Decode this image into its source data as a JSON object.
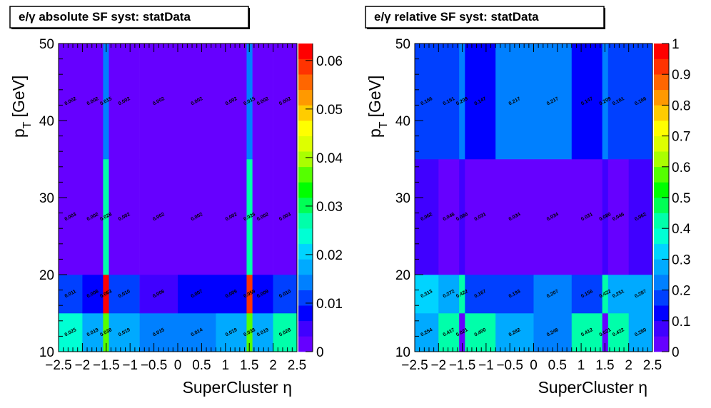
{
  "chart_data": [
    {
      "type": "heatmap",
      "title": "e/γ absolute SF syst: statData",
      "xlabel": "SuperCluster  η",
      "ylabel_main": "p",
      "ylabel_sub": "T",
      "ylabel_unit": "[GeV]",
      "x_edges": [
        -2.5,
        -2.0,
        -1.566,
        -1.444,
        -0.8,
        0.0,
        0.8,
        1.444,
        1.566,
        2.0,
        2.5
      ],
      "y_edges": [
        10,
        15,
        20,
        35,
        50
      ],
      "xlim": [
        -2.5,
        2.5
      ],
      "ylim": [
        10,
        50
      ],
      "zlim": [
        0,
        0.0635
      ],
      "x_ticks": [
        "−2.5",
        "−2",
        "−1.5",
        "−1",
        "−0.5",
        "0",
        "0.5",
        "1",
        "1.5",
        "2",
        "2.5"
      ],
      "y_ticks": [
        "10",
        "20",
        "30",
        "40",
        "50"
      ],
      "z_ticks": [
        "0",
        "0.01",
        "0.02",
        "0.03",
        "0.04",
        "0.05",
        "0.06"
      ],
      "values": [
        [
          0.025,
          0.019,
          0.038,
          0.019,
          0.015,
          0.014,
          0.019,
          0.038,
          0.019,
          0.028
        ],
        [
          0.011,
          0.008,
          0.063,
          0.01,
          0.006,
          0.007,
          0.009,
          0.059,
          0.009,
          0.01
        ],
        [
          0.003,
          0.002,
          0.028,
          0.002,
          0.002,
          0.002,
          0.002,
          0.026,
          0.002,
          0.003
        ],
        [
          0.002,
          0.002,
          0.015,
          0.002,
          0.002,
          0.002,
          0.002,
          0.015,
          0.002,
          0.002
        ]
      ],
      "labels": [
        [
          "0.025",
          "0.019",
          "0.038",
          "0.019",
          "0.015",
          "0.014",
          "0.019",
          "0.038",
          "0.019",
          "0.028"
        ],
        [
          "0.011",
          "0.008",
          "0.063",
          "0.010",
          "0.006",
          "0.007",
          "0.009",
          "0.059",
          "0.009",
          "0.010"
        ],
        [
          "0.003",
          "0.002",
          "0.028",
          "0.002",
          "0.002",
          "0.002",
          "0.002",
          "0.026",
          "0.002",
          "0.003"
        ],
        [
          "0.002",
          "0.002",
          "0.015",
          "0.002",
          "0.002",
          "0.002",
          "0.002",
          "0.015",
          "0.002",
          "0.002"
        ]
      ]
    },
    {
      "type": "heatmap",
      "title": "e/γ relative SF syst: statData",
      "xlabel": "SuperCluster  η",
      "ylabel_main": "p",
      "ylabel_sub": "T",
      "ylabel_unit": "[GeV]",
      "x_edges": [
        -2.5,
        -2.0,
        -1.566,
        -1.444,
        -0.8,
        0.0,
        0.8,
        1.444,
        1.566,
        2.0,
        2.5
      ],
      "y_edges": [
        10,
        15,
        20,
        35,
        50
      ],
      "xlim": [
        -2.5,
        2.5
      ],
      "ylim": [
        10,
        50
      ],
      "zlim": [
        0,
        1
      ],
      "x_ticks": [
        "−2.5",
        "−2",
        "−1.5",
        "−1",
        "−0.5",
        "0",
        "0.5",
        "1",
        "1.5",
        "2",
        "2.5"
      ],
      "y_ticks": [
        "10",
        "20",
        "30",
        "40",
        "50"
      ],
      "z_ticks": [
        "0",
        "0.1",
        "0.2",
        "0.3",
        "0.4",
        "0.5",
        "0.6",
        "0.7",
        "0.8",
        "0.9",
        "1"
      ],
      "values": [
        [
          0.254,
          0.417,
          0.021,
          0.4,
          0.282,
          0.246,
          0.412,
          0.021,
          0.422,
          0.28
        ],
        [
          0.313,
          0.272,
          0.422,
          0.167,
          0.193,
          0.207,
          0.156,
          0.422,
          0.251,
          0.287
        ],
        [
          0.062,
          0.046,
          0.08,
          0.031,
          0.034,
          0.034,
          0.031,
          0.08,
          0.046,
          0.062
        ],
        [
          0.166,
          0.161,
          0.209,
          0.147,
          0.217,
          0.217,
          0.147,
          0.209,
          0.161,
          0.166
        ]
      ],
      "labels": [
        [
          "0.254",
          "0.417",
          "0.021",
          "0.400",
          "0.282",
          "0.246",
          "0.412",
          "0.021",
          "0.422",
          "0.280"
        ],
        [
          "0.313",
          "0.272",
          "0.422",
          "0.167",
          "0.193",
          "0.207",
          "0.156",
          "0.422",
          "0.251",
          "0.287"
        ],
        [
          "0.062",
          "0.046",
          "0.080",
          "0.031",
          "0.034",
          "0.034",
          "0.031",
          "0.080",
          "0.046",
          "0.062"
        ],
        [
          "0.166",
          "0.161",
          "0.209",
          "0.147",
          "0.217",
          "0.217",
          "0.147",
          "0.209",
          "0.161",
          "0.166"
        ]
      ]
    }
  ],
  "palette": [
    "#6600ff",
    "#4000ff",
    "#0000ff",
    "#0040ff",
    "#0080ff",
    "#00aaff",
    "#00d4ff",
    "#00ffd4",
    "#00ffaa",
    "#00ff55",
    "#00ff00",
    "#55ff00",
    "#aaff00",
    "#ddff00",
    "#ffff00",
    "#ffcc00",
    "#ff9900",
    "#ff6600",
    "#ff3300",
    "#ff0000"
  ]
}
